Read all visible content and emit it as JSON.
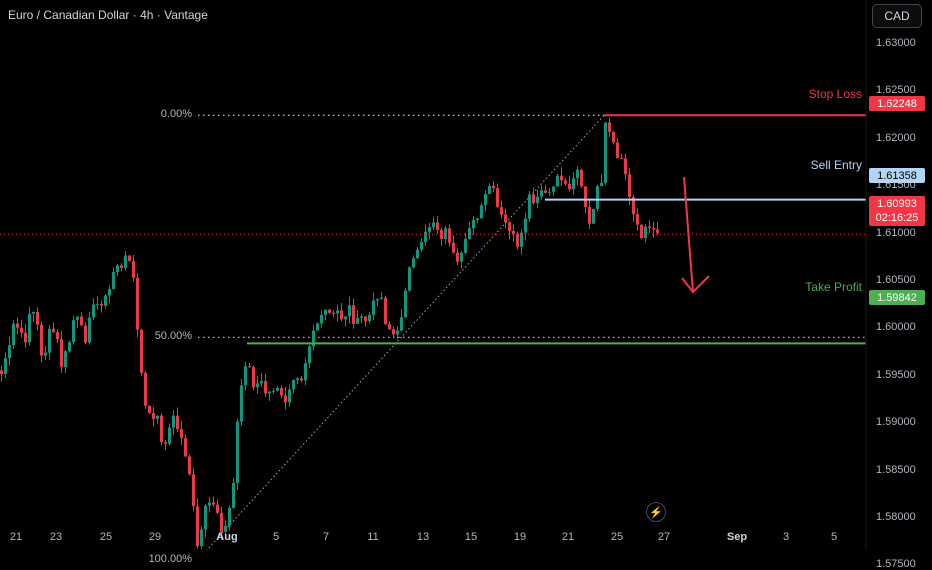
{
  "header": {
    "title": "Euro / Canadian Dollar · 4h · Vantage",
    "currency_button": "CAD"
  },
  "price_axis": [
    "1.63000",
    "1.62500",
    "1.62000",
    "1.61500",
    "1.61000",
    "1.60500",
    "1.60000",
    "1.59500",
    "1.59000",
    "1.58500",
    "1.58000",
    "1.57500"
  ],
  "time_axis": [
    {
      "label": "21",
      "bold": false
    },
    {
      "label": "23",
      "bold": false
    },
    {
      "label": "25",
      "bold": false
    },
    {
      "label": "29",
      "bold": false
    },
    {
      "label": "Aug",
      "bold": true
    },
    {
      "label": "5",
      "bold": false
    },
    {
      "label": "7",
      "bold": false
    },
    {
      "label": "11",
      "bold": false
    },
    {
      "label": "13",
      "bold": false
    },
    {
      "label": "15",
      "bold": false
    },
    {
      "label": "19",
      "bold": false
    },
    {
      "label": "21",
      "bold": false
    },
    {
      "label": "25",
      "bold": false
    },
    {
      "label": "27",
      "bold": false
    },
    {
      "label": "Sep",
      "bold": true
    },
    {
      "label": "3",
      "bold": false
    },
    {
      "label": "5",
      "bold": false
    }
  ],
  "fib_levels": [
    {
      "label": "0.00%",
      "price": 1.62248
    },
    {
      "label": "50.00%",
      "price": 1.59905
    },
    {
      "label": "100.00%",
      "price": 1.5756
    }
  ],
  "levels": {
    "stop_loss": {
      "label": "Stop Loss",
      "price": "1.62248",
      "color": "#f23645"
    },
    "sell_entry": {
      "label": "Sell Entry",
      "price": "1.61358",
      "color": "#b2d4f5"
    },
    "take_profit": {
      "label": "Take Profit",
      "price": "1.59842",
      "color": "#4caf50"
    }
  },
  "current_price": {
    "price": "1.60993",
    "countdown": "02:16:25",
    "color": "#f23645"
  },
  "icons": {
    "lightning": "lightning-icon"
  },
  "chart_data": {
    "type": "candlestick",
    "symbol": "EURCAD",
    "timeframe": "4h",
    "ylim": [
      1.5735,
      1.6335
    ],
    "up_color": "#089981",
    "down_color": "#f23645",
    "anchors": [
      [
        0,
        1.5952
      ],
      [
        6,
        1.5976
      ],
      [
        12,
        1.6008
      ],
      [
        18,
        1.5998
      ],
      [
        24,
        1.599
      ],
      [
        30,
        1.6022
      ],
      [
        36,
        1.6005
      ],
      [
        42,
        1.5958
      ],
      [
        48,
        1.5998
      ],
      [
        54,
        1.6002
      ],
      [
        60,
        1.5962
      ],
      [
        66,
        1.598
      ],
      [
        72,
        1.6008
      ],
      [
        78,
        1.6015
      ],
      [
        84,
        1.599
      ],
      [
        90,
        1.6015
      ],
      [
        96,
        1.603
      ],
      [
        102,
        1.6022
      ],
      [
        108,
        1.6045
      ],
      [
        114,
        1.6068
      ],
      [
        120,
        1.6062
      ],
      [
        126,
        1.6088
      ],
      [
        132,
        1.6048
      ],
      [
        138,
        1.5975
      ],
      [
        144,
        1.5918
      ],
      [
        150,
        1.591
      ],
      [
        156,
        1.5905
      ],
      [
        162,
        1.587
      ],
      [
        168,
        1.59
      ],
      [
        174,
        1.5905
      ],
      [
        180,
        1.588
      ],
      [
        186,
        1.5858
      ],
      [
        190,
        1.584
      ],
      [
        195,
        1.5768
      ],
      [
        200,
        1.5785
      ],
      [
        205,
        1.5818
      ],
      [
        210,
        1.5822
      ],
      [
        215,
        1.581
      ],
      [
        220,
        1.579
      ],
      [
        226,
        1.58
      ],
      [
        232,
        1.5835
      ],
      [
        236,
        1.59
      ],
      [
        240,
        1.5935
      ],
      [
        244,
        1.5962
      ],
      [
        248,
        1.596
      ],
      [
        252,
        1.5938
      ],
      [
        258,
        1.5945
      ],
      [
        264,
        1.5932
      ],
      [
        270,
        1.5935
      ],
      [
        276,
        1.594
      ],
      [
        282,
        1.592
      ],
      [
        288,
        1.5938
      ],
      [
        294,
        1.5945
      ],
      [
        300,
        1.594
      ],
      [
        306,
        1.5968
      ],
      [
        312,
        1.5995
      ],
      [
        318,
        1.6008
      ],
      [
        324,
        1.6025
      ],
      [
        330,
        1.6015
      ],
      [
        336,
        1.6022
      ],
      [
        342,
        1.6005
      ],
      [
        348,
        1.6022
      ],
      [
        354,
        1.6
      ],
      [
        360,
        1.6018
      ],
      [
        366,
        1.6005
      ],
      [
        372,
        1.603
      ],
      [
        378,
        1.6038
      ],
      [
        384,
        1.6005
      ],
      [
        390,
        1.599
      ],
      [
        396,
        1.5998
      ],
      [
        402,
        1.6025
      ],
      [
        408,
        1.606
      ],
      [
        414,
        1.6085
      ],
      [
        420,
        1.6095
      ],
      [
        426,
        1.6102
      ],
      [
        432,
        1.611
      ],
      [
        438,
        1.6095
      ],
      [
        444,
        1.6102
      ],
      [
        450,
        1.609
      ],
      [
        456,
        1.6075
      ],
      [
        462,
        1.609
      ],
      [
        468,
        1.6102
      ],
      [
        474,
        1.6115
      ],
      [
        480,
        1.613
      ],
      [
        486,
        1.6155
      ],
      [
        492,
        1.6148
      ],
      [
        498,
        1.6125
      ],
      [
        504,
        1.6115
      ],
      [
        510,
        1.61
      ],
      [
        516,
        1.609
      ],
      [
        522,
        1.6112
      ],
      [
        528,
        1.614
      ],
      [
        534,
        1.6135
      ],
      [
        540,
        1.615
      ],
      [
        546,
        1.614
      ],
      [
        552,
        1.6155
      ],
      [
        558,
        1.616
      ],
      [
        564,
        1.615
      ],
      [
        570,
        1.6148
      ],
      [
        576,
        1.6165
      ],
      [
        582,
        1.614
      ],
      [
        588,
        1.6112
      ],
      [
        594,
        1.614
      ],
      [
        600,
        1.6158
      ],
      [
        604,
        1.6222
      ],
      [
        610,
        1.6205
      ],
      [
        616,
        1.6185
      ],
      [
        622,
        1.6175
      ],
      [
        628,
        1.614
      ],
      [
        634,
        1.611
      ],
      [
        640,
        1.6095
      ],
      [
        646,
        1.6115
      ],
      [
        652,
        1.61
      ],
      [
        656,
        1.6099
      ]
    ]
  }
}
